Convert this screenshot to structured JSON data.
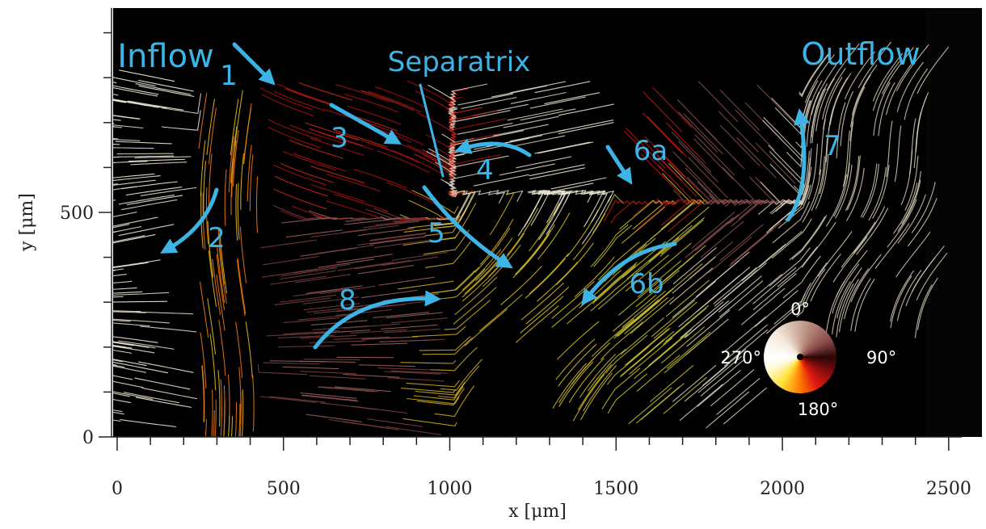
{
  "chart_data": {
    "type": "flow-field",
    "xlabel": "x [μm]",
    "ylabel": "y [μm]",
    "xlim": [
      -12,
      2600
    ],
    "ylim": [
      0,
      955
    ],
    "xticks": [
      0,
      500,
      1000,
      1500,
      2000,
      2500
    ],
    "yticks": [
      0,
      500
    ],
    "xminorticks": [
      100,
      200,
      300,
      400,
      600,
      700,
      800,
      900,
      1100,
      1200,
      1300,
      1400,
      1600,
      1700,
      1800,
      1900,
      2100,
      2200,
      2300,
      2400
    ],
    "yminorticks": [
      100,
      200,
      300,
      400,
      600,
      700,
      800,
      900
    ],
    "annotations": [
      "Inflow",
      "Outflow",
      "Separatrix",
      "1",
      "2",
      "3",
      "4",
      "5",
      "6a",
      "6b",
      "7",
      "8"
    ],
    "colorwheel": {
      "labels": [
        "0°",
        "90°",
        "180°",
        "270°"
      ]
    }
  }
}
